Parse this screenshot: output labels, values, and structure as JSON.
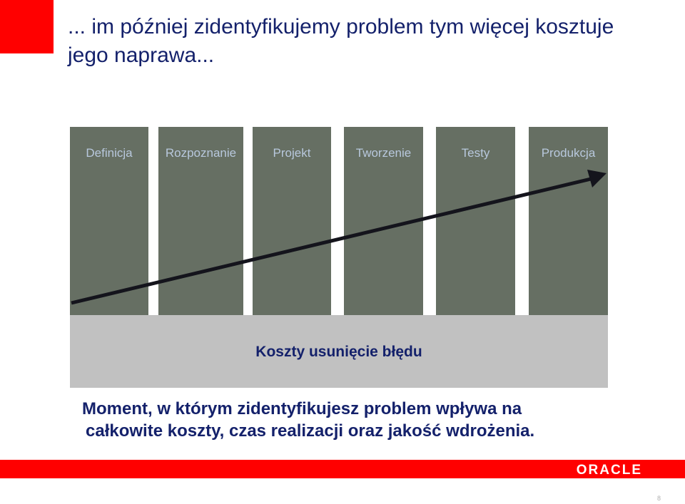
{
  "slide": {
    "title": "... im później zidentyfikujemy problem tym więcej kosztuje jego naprawa...",
    "footnote_line1": "Moment, w którym zidentyfikujesz problem wpływa na",
    "footnote_line2": "całkowite koszty, czas realizacji oraz jakość wdrożenia.",
    "logo_text": "ORACLE",
    "page_number": "8"
  },
  "diagram": {
    "phases": [
      "Definicja",
      "Rozpoznanie",
      "Projekt",
      "Tworzenie",
      "Testy",
      "Produkcja"
    ],
    "cost_label": "Koszty usunięcie błędu",
    "cost_trend": "increasing"
  },
  "colors": {
    "accent_red": "#ff0000",
    "title_navy": "#14216b",
    "phase_gray": "#666f63",
    "phase_label": "#b8c8dd",
    "band_gray": "#c1c1c1",
    "arrow": "#14141c"
  }
}
